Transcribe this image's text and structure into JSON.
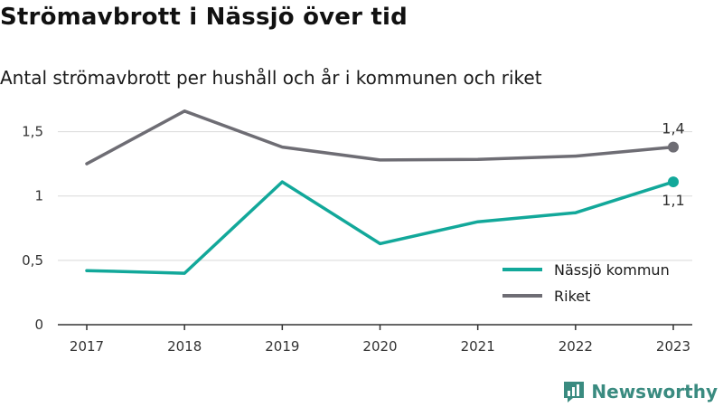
{
  "title": "Strömavbrott i Nässjö över tid",
  "subtitle": "Antal strömavbrott per hushåll och år i kommunen och riket",
  "brand": {
    "name": "Newsworthy",
    "logo_icon": "bar-chart-logo-icon",
    "color": "#3a8b80"
  },
  "chart_data": {
    "type": "line",
    "title": "Strömavbrott i Nässjö över tid",
    "subtitle": "Antal strömavbrott per hushåll och år i kommunen och riket",
    "x": [
      "2017",
      "2018",
      "2019",
      "2020",
      "2021",
      "2022",
      "2023"
    ],
    "ylim": [
      0,
      1.75
    ],
    "yticks": [
      0,
      0.5,
      1,
      1.5
    ],
    "ytick_labels": [
      "0",
      "0,5",
      "1",
      "1,5"
    ],
    "grid": true,
    "legend_position": "bottom-right",
    "series": [
      {
        "name": "Nässjö kommun",
        "color": "#12a89a",
        "values": [
          0.42,
          0.4,
          1.11,
          0.63,
          0.8,
          0.87,
          1.11
        ],
        "end_label": "1,1",
        "end_label_side": "below"
      },
      {
        "name": "Riket",
        "color": "#6e6d74",
        "values": [
          1.25,
          1.66,
          1.38,
          1.28,
          1.285,
          1.31,
          1.38
        ],
        "end_label": "1,4",
        "end_label_side": "above"
      }
    ]
  }
}
